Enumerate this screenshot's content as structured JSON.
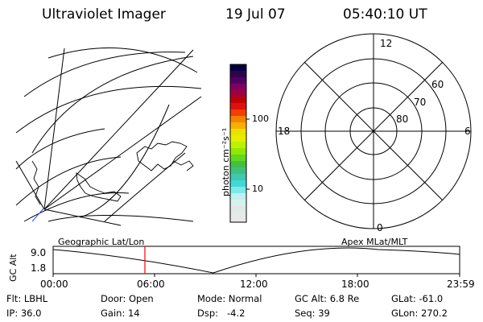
{
  "header": {
    "instrument": "Ultraviolet Imager",
    "date": "19 Jul 07",
    "time": "05:40:10 UT"
  },
  "colorbar": {
    "unit_label": "photon cm⁻²s⁻¹",
    "tick_100": "100",
    "tick_10": "10",
    "colors": [
      "#e8e8e8",
      "#c0f0f0",
      "#40d8d8",
      "#40c040",
      "#80e000",
      "#d0f000",
      "#f0e000",
      "#f8a000",
      "#f04000",
      "#c00000",
      "#a00060",
      "#500060",
      "#000040"
    ]
  },
  "polar_plot": {
    "label_top": "12",
    "label_bottom": "0",
    "label_left": "18",
    "label_right": "6",
    "ring_60": "60",
    "ring_70": "70",
    "ring_80": "80"
  },
  "orbit_panel": {
    "y_axis_title": "GC Alt",
    "y_top": "9.0",
    "y_bottom": "1.8",
    "left_label": "Geographic Lat/Lon",
    "right_label": "Apex MLat/MLT",
    "x_ticks": [
      "00:00",
      "06:00",
      "12:00",
      "18:00",
      "23:59"
    ],
    "marker_color": "#ff0000"
  },
  "info": {
    "filter": "Flt: LBHL",
    "ip": "IP: 36.0",
    "door": "Door: Open",
    "gain": "Gain: 14",
    "mode": "Mode: Normal",
    "dsp": "Dsp:   -4.2",
    "gc_alt": "GC Alt: 6.8 Re",
    "seq": "Seq: 39",
    "glat": "GLat: -61.0",
    "glon": "GLon: 270.2"
  }
}
